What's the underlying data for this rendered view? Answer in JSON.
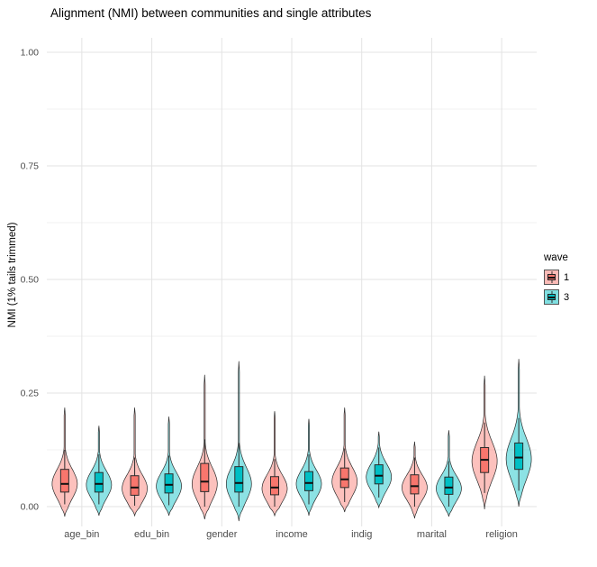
{
  "chart": {
    "title": "Alignment (NMI) between communities and single attributes",
    "ylabel": "NMI (1% tails trimmed)",
    "legend": {
      "title": "wave",
      "entries": [
        {
          "label": "1",
          "color": "#F8766D"
        },
        {
          "label": "3",
          "color": "#00BFC4"
        }
      ]
    }
  },
  "chart_data": {
    "type": "violin+box",
    "title": "Alignment (NMI) between communities and single attributes",
    "xlabel": "",
    "ylabel": "NMI (1% tails trimmed)",
    "categories": [
      "age_bin",
      "edu_bin",
      "gender",
      "income",
      "indig",
      "marital",
      "religion"
    ],
    "y_ticks": {
      "labels": [
        "0.00",
        "0.25",
        "0.50",
        "0.75",
        "1.00"
      ],
      "values": [
        0,
        0.25,
        0.5,
        0.75,
        1.0
      ]
    },
    "ylim": [
      -0.05,
      1.05
    ],
    "grid": true,
    "legend_position": "right",
    "series": [
      {
        "name": "1",
        "color": "#F8766D",
        "stats": [
          {
            "min": -0.022,
            "max": 0.218,
            "mode": 0.05,
            "bw": 0.032,
            "q1": 0.032,
            "med": 0.05,
            "q3": 0.082,
            "wlo": 0.005,
            "whi": 0.125
          },
          {
            "min": -0.02,
            "max": 0.218,
            "mode": 0.04,
            "bw": 0.03,
            "q1": 0.025,
            "med": 0.042,
            "q3": 0.068,
            "wlo": 0.002,
            "whi": 0.108
          },
          {
            "min": -0.028,
            "max": 0.29,
            "mode": 0.05,
            "bw": 0.036,
            "q1": 0.033,
            "med": 0.055,
            "q3": 0.095,
            "wlo": 0.0,
            "whi": 0.148
          },
          {
            "min": -0.02,
            "max": 0.21,
            "mode": 0.04,
            "bw": 0.03,
            "q1": 0.026,
            "med": 0.042,
            "q3": 0.066,
            "wlo": 0.0,
            "whi": 0.105
          },
          {
            "min": -0.012,
            "max": 0.218,
            "mode": 0.055,
            "bw": 0.032,
            "q1": 0.042,
            "med": 0.06,
            "q3": 0.085,
            "wlo": 0.01,
            "whi": 0.128
          },
          {
            "min": -0.026,
            "max": 0.143,
            "mode": 0.042,
            "bw": 0.028,
            "q1": 0.028,
            "med": 0.045,
            "q3": 0.07,
            "wlo": 0.0,
            "whi": 0.108
          },
          {
            "min": -0.006,
            "max": 0.288,
            "mode": 0.1,
            "bw": 0.042,
            "q1": 0.075,
            "med": 0.103,
            "q3": 0.13,
            "wlo": 0.03,
            "whi": 0.185
          }
        ]
      },
      {
        "name": "3",
        "color": "#00BFC4",
        "stats": [
          {
            "min": -0.02,
            "max": 0.178,
            "mode": 0.048,
            "bw": 0.03,
            "q1": 0.032,
            "med": 0.05,
            "q3": 0.075,
            "wlo": 0.005,
            "whi": 0.115
          },
          {
            "min": -0.02,
            "max": 0.198,
            "mode": 0.045,
            "bw": 0.03,
            "q1": 0.03,
            "med": 0.048,
            "q3": 0.072,
            "wlo": 0.003,
            "whi": 0.112
          },
          {
            "min": -0.032,
            "max": 0.32,
            "mode": 0.05,
            "bw": 0.036,
            "q1": 0.032,
            "med": 0.052,
            "q3": 0.088,
            "wlo": 0.0,
            "whi": 0.14
          },
          {
            "min": -0.02,
            "max": 0.193,
            "mode": 0.05,
            "bw": 0.03,
            "q1": 0.035,
            "med": 0.052,
            "q3": 0.077,
            "wlo": 0.005,
            "whi": 0.115
          },
          {
            "min": -0.002,
            "max": 0.165,
            "mode": 0.065,
            "bw": 0.03,
            "q1": 0.05,
            "med": 0.068,
            "q3": 0.092,
            "wlo": 0.02,
            "whi": 0.13
          },
          {
            "min": -0.022,
            "max": 0.168,
            "mode": 0.04,
            "bw": 0.028,
            "q1": 0.027,
            "med": 0.042,
            "q3": 0.065,
            "wlo": 0.0,
            "whi": 0.1
          },
          {
            "min": 0.0,
            "max": 0.325,
            "mode": 0.105,
            "bw": 0.045,
            "q1": 0.082,
            "med": 0.108,
            "q3": 0.14,
            "wlo": 0.035,
            "whi": 0.195
          }
        ]
      }
    ]
  },
  "colors": {
    "background": "#FFFFFF",
    "grid_major": "#E3E3E3",
    "grid_minor": "#F1F1F1",
    "axis_text": "#4D4D4D",
    "outline": "#2B2B2B"
  }
}
